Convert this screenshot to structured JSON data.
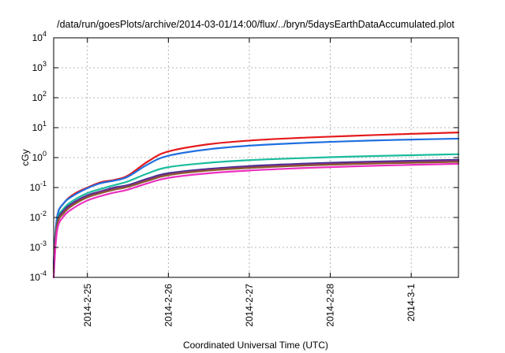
{
  "chart_data": {
    "type": "line",
    "title": "/data/run/goesPlots/archive/2014-03-01/14:00/flux/../bryn/5daysEarthDataAccumulated.plot",
    "xlabel": "Coordinated Universal Time (UTC)",
    "ylabel": "cGy",
    "y_scale": "log",
    "ylim": [
      0.0001,
      10000
    ],
    "y_ticks": [
      {
        "value": 0.0001,
        "base": "10",
        "exp": "-4"
      },
      {
        "value": 0.001,
        "base": "10",
        "exp": "-3"
      },
      {
        "value": 0.01,
        "base": "10",
        "exp": "-2"
      },
      {
        "value": 0.1,
        "base": "10",
        "exp": "-1"
      },
      {
        "value": 1,
        "base": "10",
        "exp": "0"
      },
      {
        "value": 10,
        "base": "10",
        "exp": "1"
      },
      {
        "value": 100,
        "base": "10",
        "exp": "2"
      },
      {
        "value": 1000,
        "base": "10",
        "exp": "3"
      },
      {
        "value": 10000,
        "base": "10",
        "exp": "4"
      }
    ],
    "xlim": [
      "2014-02-24 14:00",
      "2014-03-01 14:00"
    ],
    "x_ticks": [
      {
        "value": "2014-02-25 00:00",
        "label": "2014-2-25"
      },
      {
        "value": "2014-02-26 00:00",
        "label": "2014-2-26"
      },
      {
        "value": "2014-02-27 00:00",
        "label": "2014-2-27"
      },
      {
        "value": "2014-02-28 00:00",
        "label": "2014-2-28"
      },
      {
        "value": "2014-03-01 00:00",
        "label": "2014-3-1"
      }
    ],
    "grid": true,
    "legend": "none",
    "x": [
      "2014-02-24 14:00",
      "2014-02-24 15:00",
      "2014-02-24 17:00",
      "2014-02-24 20:00",
      "2014-02-25 00:00",
      "2014-02-25 04:00",
      "2014-02-25 08:00",
      "2014-02-25 12:00",
      "2014-02-25 18:00",
      "2014-02-26 00:00",
      "2014-02-26 12:00",
      "2014-02-27 00:00",
      "2014-02-27 12:00",
      "2014-02-28 00:00",
      "2014-02-28 12:00",
      "2014-03-01 00:00",
      "2014-03-01 14:00"
    ],
    "series": [
      {
        "color": "#e41a1c",
        "values": [
          0.0003,
          0.01,
          0.03,
          0.06,
          0.1,
          0.15,
          0.18,
          0.25,
          0.75,
          1.6,
          2.8,
          3.7,
          4.4,
          5.0,
          5.6,
          6.2,
          6.9
        ]
      },
      {
        "color": "#1f6fe0",
        "values": [
          0.0003,
          0.01,
          0.03,
          0.055,
          0.095,
          0.14,
          0.17,
          0.23,
          0.6,
          1.15,
          1.9,
          2.5,
          2.95,
          3.35,
          3.7,
          4.0,
          4.3
        ]
      },
      {
        "color": "#1abc9c",
        "values": [
          0.0002,
          0.007,
          0.02,
          0.038,
          0.065,
          0.09,
          0.12,
          0.16,
          0.3,
          0.48,
          0.67,
          0.82,
          0.93,
          1.03,
          1.12,
          1.2,
          1.3
        ]
      },
      {
        "color": "#2c2c8c",
        "values": [
          0.0002,
          0.006,
          0.017,
          0.032,
          0.055,
          0.075,
          0.1,
          0.12,
          0.2,
          0.3,
          0.42,
          0.52,
          0.6,
          0.67,
          0.73,
          0.78,
          0.84
        ]
      },
      {
        "color": "#7a2a90",
        "values": [
          0.0002,
          0.0055,
          0.016,
          0.03,
          0.052,
          0.072,
          0.095,
          0.115,
          0.19,
          0.28,
          0.4,
          0.49,
          0.57,
          0.63,
          0.69,
          0.74,
          0.8
        ]
      },
      {
        "color": "#8b5a2b",
        "values": [
          0.00015,
          0.005,
          0.014,
          0.027,
          0.047,
          0.065,
          0.085,
          0.105,
          0.17,
          0.26,
          0.37,
          0.45,
          0.52,
          0.58,
          0.63,
          0.67,
          0.72
        ]
      },
      {
        "color": "#ec2fc0",
        "values": [
          0.0001,
          0.0035,
          0.011,
          0.021,
          0.037,
          0.052,
          0.068,
          0.085,
          0.14,
          0.21,
          0.3,
          0.37,
          0.43,
          0.48,
          0.53,
          0.57,
          0.62
        ]
      }
    ]
  }
}
